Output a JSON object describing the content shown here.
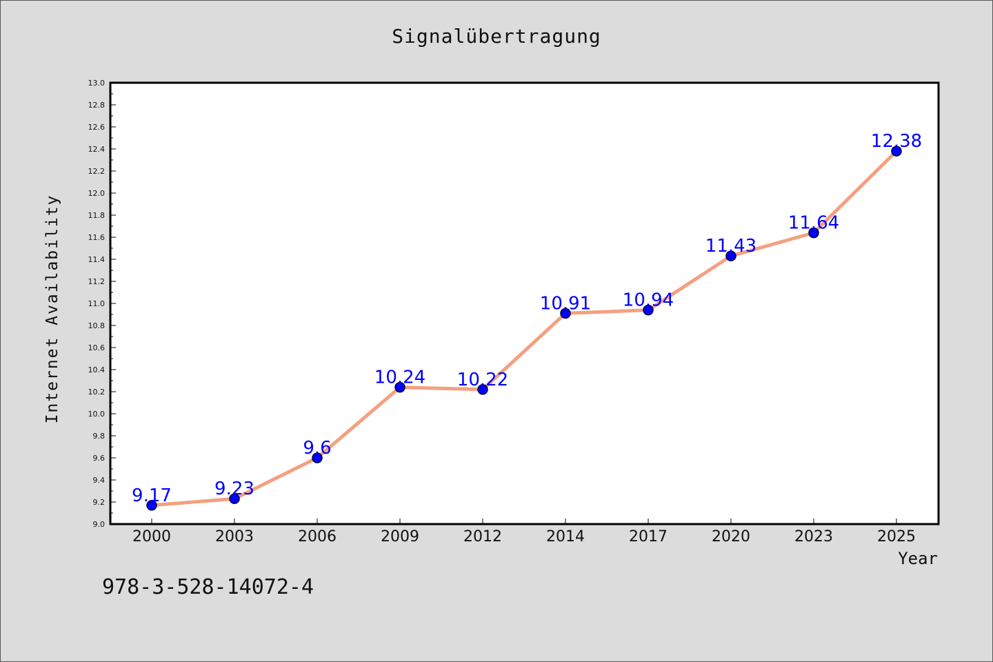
{
  "chart_data": {
    "type": "line",
    "title": "Signalübertragung",
    "xlabel": "Year",
    "ylabel": "Internet Availability",
    "categories": [
      "2000",
      "2003",
      "2006",
      "2009",
      "2012",
      "2014",
      "2017",
      "2020",
      "2023",
      "2025"
    ],
    "series": [
      {
        "values": [
          9.17,
          9.23,
          9.6,
          10.24,
          10.22,
          10.91,
          10.94,
          11.43,
          11.64,
          12.38
        ]
      }
    ],
    "data_labels": [
      "9.17",
      "9.23",
      "9.6",
      "10.24",
      "10.22",
      "10.91",
      "10.94",
      "11.43",
      "11.64",
      "12.38"
    ],
    "ylim": [
      9.0,
      13.0
    ],
    "yticks": [
      "9.0",
      "9.2",
      "9.4",
      "9.6",
      "9.8",
      "10.0",
      "10.2",
      "10.4",
      "10.6",
      "10.8",
      "11.0",
      "11.2",
      "11.4",
      "11.6",
      "11.8",
      "12.0",
      "12.2",
      "12.4",
      "12.6",
      "12.8",
      "13.0"
    ],
    "grid": false,
    "colors": {
      "line": "#f4a080",
      "marker": "#0000ff",
      "label": "#0000ff",
      "plot_background": "#ffffff",
      "page_background": "#dcdcdc"
    }
  },
  "footer": {
    "identifier": "978-3-528-14072-4"
  }
}
